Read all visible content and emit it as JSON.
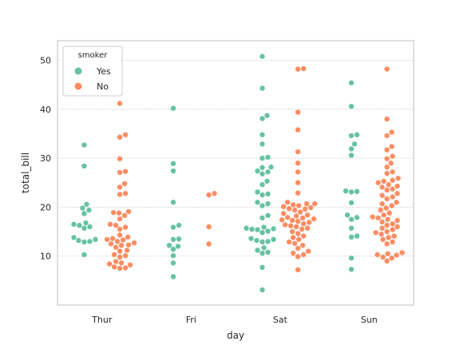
{
  "chart_data": {
    "type": "scatter",
    "subtype": "swarm",
    "xlabel": "day",
    "ylabel": "total_bill",
    "categories": [
      "Thur",
      "Fri",
      "Sat",
      "Sun"
    ],
    "ylim": [
      0,
      54
    ],
    "yticks": [
      10,
      20,
      30,
      40,
      50
    ],
    "grid": true,
    "legend": {
      "title": "smoker",
      "placement": "top-left"
    },
    "series": [
      {
        "name": "Yes",
        "color": "#66c2a5",
        "values": [
          [
            32.7,
            28.4,
            20.6,
            19.8,
            19.4,
            18.7,
            16.8,
            16.5,
            16.3,
            16.0,
            15.7,
            13.8,
            13.4,
            13.2,
            13.0,
            12.9,
            10.3
          ],
          [
            40.2,
            28.9,
            27.4,
            21.0,
            16.3,
            15.9,
            13.5,
            13.4,
            12.2,
            12.0,
            11.4,
            10.1,
            8.6,
            5.8
          ],
          [
            50.8,
            44.3,
            38.7,
            38.1,
            34.8,
            32.9,
            30.2,
            30.0,
            28.2,
            28.1,
            27.4,
            27.2,
            26.8,
            25.3,
            24.6,
            23.1,
            22.7,
            22.5,
            21.0,
            20.7,
            20.3,
            18.3,
            17.8,
            15.9,
            15.7,
            15.6,
            15.5,
            15.4,
            15.1,
            14.8,
            13.6,
            13.4,
            13.2,
            13.0,
            12.9,
            11.7,
            11.2,
            10.8,
            10.6,
            7.7,
            3.1
          ],
          [
            45.4,
            40.6,
            34.8,
            34.6,
            32.9,
            31.9,
            30.6,
            23.3,
            23.2,
            23.1,
            20.9,
            18.4,
            17.9,
            17.5,
            15.7,
            14.1,
            13.9,
            9.6,
            7.3
          ]
        ]
      },
      {
        "name": "No",
        "color": "#fc8d62",
        "values": [
          [
            41.2,
            34.8,
            34.3,
            29.9,
            27.3,
            27.1,
            24.8,
            24.1,
            22.8,
            22.6,
            19.1,
            18.9,
            18.8,
            18.3,
            17.6,
            16.5,
            16.3,
            15.9,
            15.5,
            14.3,
            13.9,
            13.6,
            13.4,
            13.3,
            13.0,
            12.7,
            12.5,
            12.3,
            12.2,
            11.8,
            11.2,
            11.0,
            10.3,
            10.1,
            9.8,
            8.9,
            8.6,
            8.4,
            8.2,
            7.8,
            7.6,
            7.5
          ],
          [
            22.8,
            22.5,
            16.0,
            12.5
          ],
          [
            48.3,
            48.2,
            39.4,
            35.8,
            31.3,
            29.0,
            27.2,
            25.0,
            22.9,
            21.0,
            20.7,
            20.7,
            20.5,
            20.3,
            20.1,
            19.9,
            19.7,
            19.6,
            19.4,
            19.0,
            18.7,
            18.4,
            18.2,
            17.9,
            17.8,
            17.6,
            17.4,
            17.3,
            17.1,
            16.9,
            16.6,
            16.4,
            16.2,
            16.0,
            15.7,
            15.5,
            15.0,
            14.6,
            14.1,
            13.8,
            13.4,
            12.9,
            12.6,
            12.2,
            11.6,
            11.0,
            10.6,
            10.3,
            9.9,
            7.2
          ],
          [
            48.2,
            38.0,
            35.3,
            34.6,
            32.4,
            31.7,
            30.4,
            29.9,
            29.0,
            28.2,
            27.2,
            26.9,
            25.9,
            25.5,
            25.3,
            25.0,
            24.6,
            24.3,
            24.1,
            23.7,
            23.5,
            22.8,
            22.4,
            22.1,
            21.7,
            21.0,
            20.7,
            20.3,
            19.8,
            19.4,
            18.8,
            18.4,
            18.0,
            17.8,
            17.5,
            17.3,
            17.0,
            16.6,
            16.3,
            16.0,
            15.7,
            15.4,
            15.0,
            14.8,
            14.5,
            14.1,
            13.8,
            13.4,
            12.9,
            12.5,
            10.7,
            10.5,
            10.3,
            10.2,
            9.8,
            9.6,
            9.0
          ]
        ]
      }
    ]
  }
}
